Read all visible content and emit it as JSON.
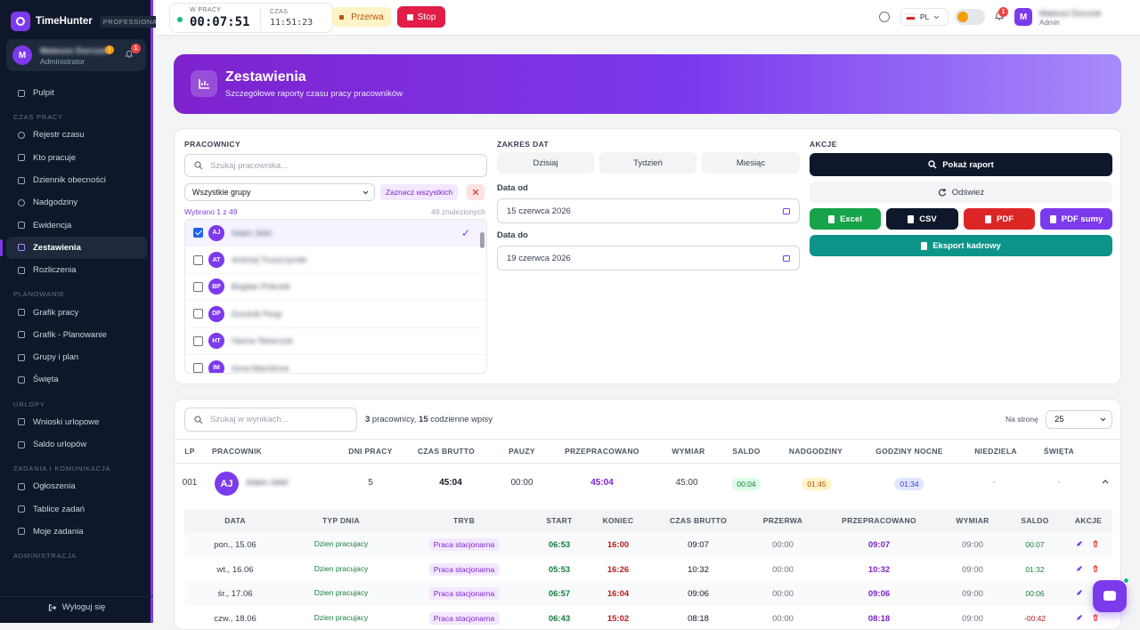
{
  "app": {
    "name": "TimeHunter",
    "edition": "PROFESSIONAL"
  },
  "user": {
    "initial": "M",
    "name": "Mateusz Durczok",
    "role_sidebar": "Administrator",
    "role_top": "Admin",
    "warn_badge": "!",
    "notif_count": "1"
  },
  "nav": {
    "sections": {
      "czas": "CZAS PRACY",
      "plan": "PLANOWANIE",
      "urlopy": "URLOPY",
      "zadania": "ZADANIA I KOMUNIKACJA",
      "admin": "ADMINISTRACJA"
    },
    "items": {
      "pulpit": "Pulpit",
      "rejestr": "Rejestr czasu",
      "kto": "Kto pracuje",
      "dziennik": "Dziennik obecności",
      "nadgodziny": "Nadgodziny",
      "ewidencja": "Ewidencja",
      "zestawienia": "Zestawienia",
      "rozliczenia": "Rozliczenia",
      "grafik": "Grafik pracy",
      "grafik_plan": "Grafik - Planowanie",
      "grupy": "Grupy i plan",
      "swieta": "Święta",
      "wnioski": "Wnioski urlopowe",
      "saldo": "Saldo urlopów",
      "ogloszenia": "Ogłoszenia",
      "tablice": "Tablice zadań",
      "moje": "Moje zadania"
    },
    "logout": "Wyloguj się"
  },
  "topbar": {
    "work_label": "W PRACY",
    "work_time": "00:07:51",
    "time_label": "CZAS",
    "clock": "11:51:23",
    "pause": "Przerwa",
    "stop": "Stop",
    "lang": "PL",
    "notif_count": "1"
  },
  "hero": {
    "title": "Zestawienia",
    "subtitle": "Szczegółowe raporty czasu pracy pracowników"
  },
  "filters": {
    "employees": {
      "label": "PRACOWNICY",
      "search_placeholder": "Szukaj pracownika...",
      "group": "Wszystkie grupy",
      "select_all": "Zaznacz wszystkich",
      "selected": "Wybrano 1 z 49",
      "found": "49 znalezionych",
      "list": [
        {
          "initials": "AJ",
          "name": "Adam Jelet",
          "selected": true
        },
        {
          "initials": "AT",
          "name": "Andrzej Truszczynski",
          "selected": false
        },
        {
          "initials": "BP",
          "name": "Bogdan Pokrzek",
          "selected": false
        },
        {
          "initials": "DP",
          "name": "Dominik Pergl",
          "selected": false
        },
        {
          "initials": "HT",
          "name": "Hanna Tekarczyk",
          "selected": false
        },
        {
          "initials": "IM",
          "name": "Irena Marcikova",
          "selected": false
        }
      ]
    },
    "dates": {
      "label": "ZAKRES DAT",
      "today": "Dzisiaj",
      "week": "Tydzień",
      "month": "Miesiąc",
      "from_label": "Data od",
      "from": "15 czerwca 2026",
      "to_label": "Data do",
      "to": "19 czerwca 2026"
    },
    "actions": {
      "label": "AKCJE",
      "show": "Pokaż raport",
      "refresh": "Odśwież",
      "excel": "Excel",
      "csv": "CSV",
      "pdf": "PDF",
      "pdf_sum": "PDF sumy",
      "hr_export": "Eksport kadrowy"
    }
  },
  "colors": {
    "accent": "#7c3aed",
    "sidebar": "#0f172a",
    "excel": "#16a34a",
    "pdf": "#dc2626",
    "hr": "#0d9488",
    "stop": "#e11d48"
  },
  "results": {
    "search_placeholder": "Szukaj w wynikach...",
    "summary_employees": "3",
    "summary_text1": " pracownicy, ",
    "summary_entries": "15",
    "summary_text2": " codzienne wpisy",
    "per_page_label": "Na stronę",
    "per_page": "25",
    "columns": {
      "lp": "LP",
      "employee": "PRACOWNIK",
      "days": "DNI PRACY",
      "gross": "CZAS BRUTTO",
      "breaks": "PAUZY",
      "worked": "PRZEPRACOWANO",
      "norm": "WYMIAR",
      "balance": "SALDO",
      "overtime": "NADGODZINY",
      "night": "GODZINY NOCNE",
      "sunday": "NIEDZIELA",
      "holidays": "ŚWIĘTA"
    },
    "row": {
      "lp": "001",
      "initials": "AJ",
      "name": "Adam Jelet",
      "days": "5",
      "gross": "45:04",
      "breaks": "00:00",
      "worked": "45:04",
      "norm": "45:00",
      "balance": "00:04",
      "overtime": "01:45",
      "night": "01:34",
      "sunday": "-",
      "holidays": "-"
    },
    "detail": {
      "columns": {
        "date": "DATA",
        "day_type": "TYP DNIA",
        "mode": "TRYB",
        "start": "START",
        "end": "KONIEC",
        "gross": "CZAS BRUTTO",
        "break": "PRZERWA",
        "worked": "PRZEPRACOWANO",
        "norm": "WYMIAR",
        "balance": "SALDO",
        "actions": "AKCJE"
      },
      "rows": [
        {
          "date": "pon., 15.06",
          "day_type": "Dzien pracujacy",
          "mode": "Praca stacjonarna",
          "start": "06:53",
          "end": "16:00",
          "gross": "09:07",
          "break": "00:00",
          "worked": "09:07",
          "norm": "09:00",
          "balance": "00:07"
        },
        {
          "date": "wt., 16.06",
          "day_type": "Dzien pracujacy",
          "mode": "Praca stacjonarna",
          "start": "05:53",
          "end": "16:26",
          "gross": "10:32",
          "break": "00:00",
          "worked": "10:32",
          "norm": "09:00",
          "balance": "01:32"
        },
        {
          "date": "śr., 17.06",
          "day_type": "Dzien pracujacy",
          "mode": "Praca stacjonarna",
          "start": "06:57",
          "end": "16:04",
          "gross": "09:06",
          "break": "00:00",
          "worked": "09:06",
          "norm": "09:00",
          "balance": "00:06"
        },
        {
          "date": "czw., 18.06",
          "day_type": "Dzien pracujacy",
          "mode": "Praca stacjonarna",
          "start": "06:43",
          "end": "15:02",
          "gross": "08:18",
          "break": "00:00",
          "worked": "08:18",
          "norm": "09:00",
          "balance": "-00:42"
        }
      ]
    }
  }
}
